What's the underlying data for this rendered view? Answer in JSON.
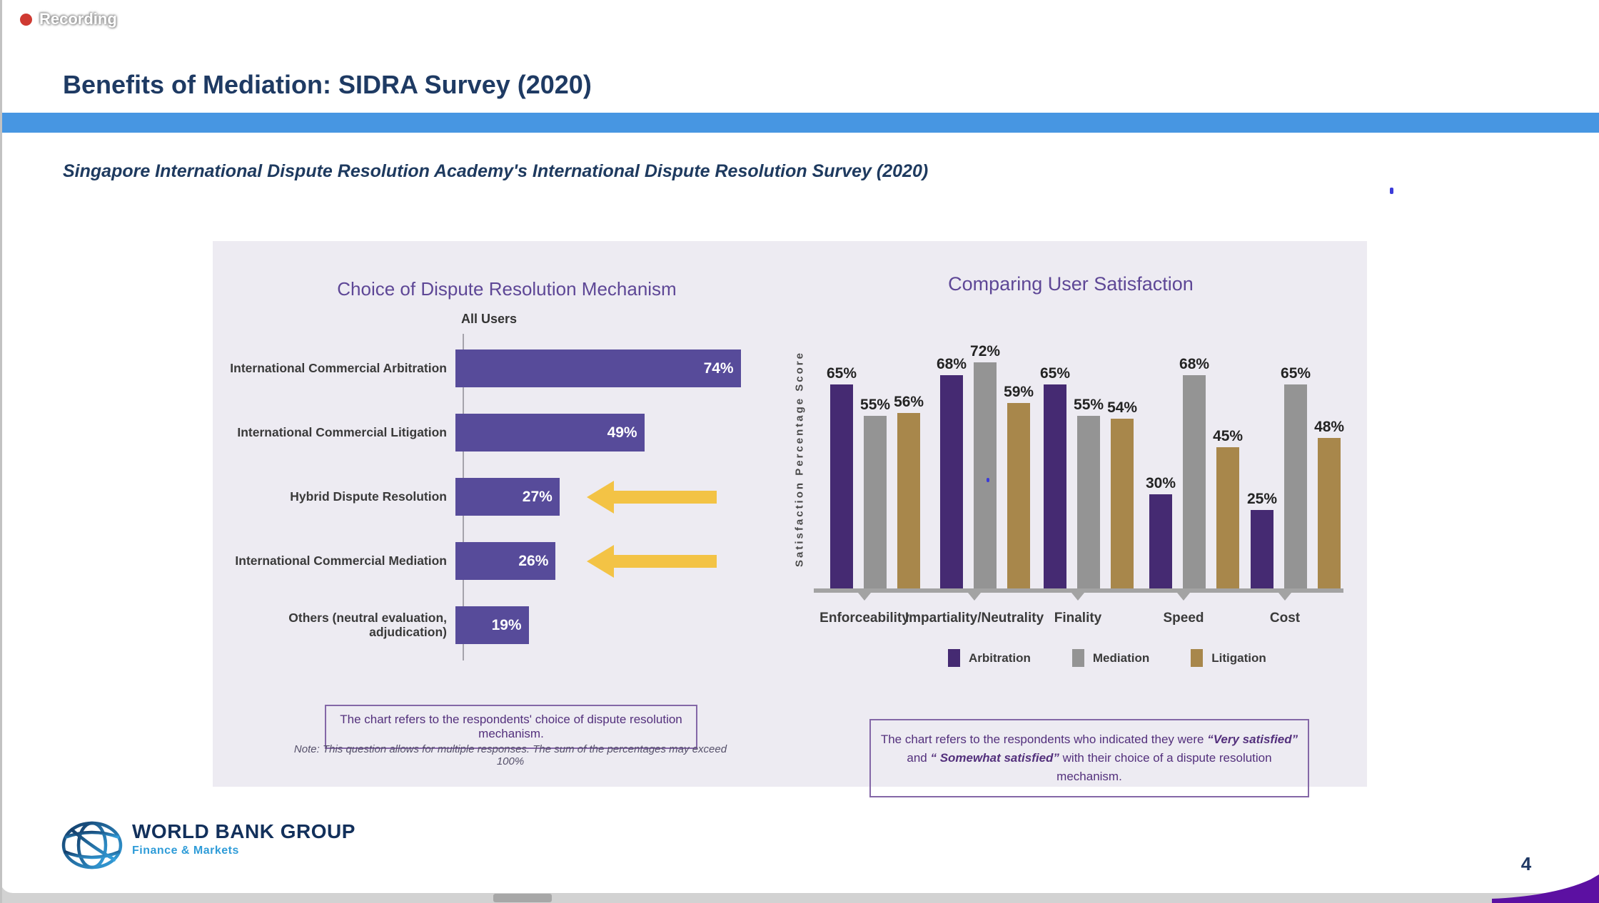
{
  "window": {
    "recording_label": "Recording"
  },
  "slide": {
    "title": "Benefits of Mediation: SIDRA Survey (2020)",
    "subtitle": "Singapore International Dispute Resolution Academy's International Dispute Resolution Survey (2020)",
    "page_number": "4"
  },
  "footer": {
    "logo_title": "WORLD BANK GROUP",
    "logo_subtitle": "Finance & Markets"
  },
  "colors": {
    "title_navy": "#1e3a63",
    "ribbon_blue": "#4796e2",
    "panel_background": "#edebf2",
    "left_bar_purple": "#574b9a",
    "chart_title_purple": "#5e4796",
    "arbitration_purple": "#452a72",
    "mediation_gray": "#949494",
    "litigation_tan": "#a8874b",
    "arrow_gold": "#f3c345",
    "recording_red": "#cf3a32",
    "note_purple": "#53307c",
    "swoosh_purple": "#5c10a2"
  },
  "chart_data": [
    {
      "type": "bar",
      "orientation": "horizontal",
      "title": "Choice of Dispute Resolution Mechanism",
      "column_header": "All Users",
      "categories": [
        "International Commercial Arbitration",
        "International Commercial Litigation",
        "Hybrid Dispute Resolution",
        "International Commercial Mediation",
        "Others (neutral evaluation, adjudication)"
      ],
      "values": [
        74,
        49,
        27,
        26,
        19
      ],
      "unit": "%",
      "highlight_arrow_rows": [
        2,
        3
      ],
      "note_box": "The chart refers to the respondents' choice of dispute resolution mechanism.",
      "footnote": "Note: This question allows for multiple responses. The sum of the percentages may exceed 100%",
      "xlim": [
        0,
        80
      ],
      "grid": false
    },
    {
      "type": "bar",
      "orientation": "vertical",
      "title": "Comparing User Satisfaction",
      "ylabel": "Satisfaction Percentage Score",
      "categories": [
        "Enforceability",
        "Impartiality/Neutrality",
        "Finality",
        "Speed",
        "Cost"
      ],
      "series": [
        {
          "name": "Arbitration",
          "color": "#452a72",
          "values": [
            65,
            68,
            65,
            30,
            25
          ]
        },
        {
          "name": "Mediation",
          "color": "#949494",
          "values": [
            55,
            72,
            55,
            68,
            65
          ]
        },
        {
          "name": "Litigation",
          "color": "#a8874b",
          "values": [
            56,
            59,
            54,
            45,
            48
          ]
        }
      ],
      "unit": "%",
      "ylim": [
        0,
        80
      ],
      "grid": false,
      "legend_position": "bottom",
      "note_box_parts": [
        "The chart refers to the respondents who indicated they were ",
        "“Very satisfied”",
        " and ",
        "“ Somewhat satisfied”",
        " with their choice of a dispute resolution mechanism."
      ]
    }
  ]
}
